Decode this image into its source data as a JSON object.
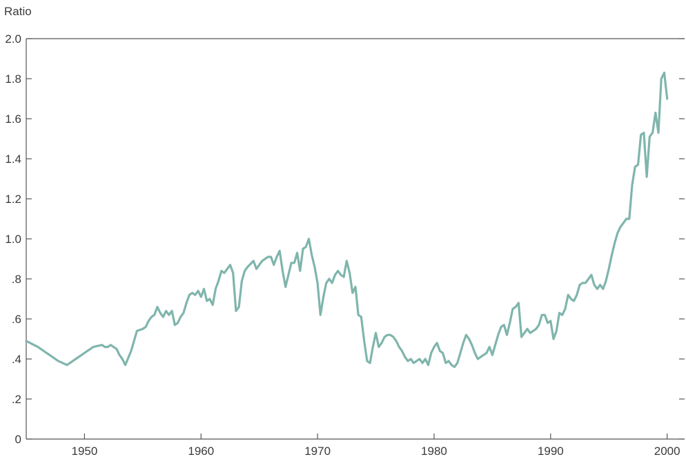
{
  "chart_data": {
    "type": "line",
    "title": "",
    "xlabel": "",
    "ylabel": "Ratio",
    "xlim": [
      1945,
      2001.5
    ],
    "ylim": [
      0,
      2.0
    ],
    "grid": false,
    "legend": "none",
    "x_ticks": [
      1950,
      1960,
      1970,
      1980,
      1990,
      2000
    ],
    "x_tick_labels": [
      "1950",
      "1960",
      "1970",
      "1980",
      "1990",
      "2000"
    ],
    "y_ticks": [
      0,
      0.2,
      0.4,
      0.6,
      0.8,
      1.0,
      1.2,
      1.4,
      1.6,
      1.8,
      2.0
    ],
    "y_tick_labels": [
      "0",
      ".2",
      ".4",
      ".6",
      ".8",
      "1.0",
      "1.2",
      "1.4",
      "1.6",
      "1.8",
      "2.0"
    ],
    "line_color": "#7fb5ac",
    "axis_color": "#555555",
    "series": [
      {
        "x": [
          1945.0,
          1946.0,
          1947.0,
          1947.75,
          1948.5,
          1949.25,
          1950.0,
          1950.75,
          1951.5,
          1951.75,
          1952.0,
          1952.25,
          1952.5,
          1952.75,
          1953.0,
          1953.25,
          1953.5,
          1954.0,
          1954.5,
          1955.0,
          1955.25,
          1955.5,
          1955.75,
          1956.0,
          1956.25,
          1956.5,
          1956.75,
          1957.0,
          1957.25,
          1957.5,
          1957.75,
          1958.0,
          1958.25,
          1958.5,
          1958.75,
          1959.0,
          1959.25,
          1959.5,
          1959.75,
          1960.0,
          1960.25,
          1960.5,
          1960.75,
          1961.0,
          1961.25,
          1961.5,
          1961.75,
          1962.0,
          1962.25,
          1962.5,
          1962.75,
          1963.0,
          1963.25,
          1963.5,
          1963.75,
          1964.0,
          1964.5,
          1964.75,
          1965.0,
          1965.25,
          1965.5,
          1965.75,
          1966.0,
          1966.25,
          1966.5,
          1966.75,
          1967.0,
          1967.25,
          1967.5,
          1967.75,
          1968.0,
          1968.25,
          1968.5,
          1968.75,
          1969.0,
          1969.25,
          1969.5,
          1969.75,
          1970.0,
          1970.25,
          1970.5,
          1970.75,
          1971.0,
          1971.25,
          1971.5,
          1971.75,
          1972.0,
          1972.25,
          1972.5,
          1972.75,
          1973.0,
          1973.25,
          1973.5,
          1973.75,
          1974.0,
          1974.25,
          1974.5,
          1974.75,
          1975.0,
          1975.25,
          1975.5,
          1975.75,
          1976.0,
          1976.25,
          1976.5,
          1976.75,
          1977.0,
          1977.25,
          1977.5,
          1977.75,
          1978.0,
          1978.25,
          1978.5,
          1978.75,
          1979.0,
          1979.25,
          1979.5,
          1979.75,
          1980.0,
          1980.25,
          1980.5,
          1980.75,
          1981.0,
          1981.25,
          1981.5,
          1981.75,
          1982.0,
          1982.25,
          1982.5,
          1982.75,
          1983.0,
          1983.25,
          1983.5,
          1983.75,
          1984.0,
          1984.25,
          1984.5,
          1984.75,
          1985.0,
          1985.25,
          1985.5,
          1985.75,
          1986.0,
          1986.25,
          1986.5,
          1986.75,
          1987.0,
          1987.25,
          1987.5,
          1987.75,
          1988.0,
          1988.25,
          1988.5,
          1988.75,
          1989.0,
          1989.25,
          1989.5,
          1989.75,
          1990.0,
          1990.25,
          1990.5,
          1990.75,
          1991.0,
          1991.25,
          1991.5,
          1991.75,
          1992.0,
          1992.25,
          1992.5,
          1992.75,
          1993.0,
          1993.25,
          1993.5,
          1993.75,
          1994.0,
          1994.25,
          1994.5,
          1994.75,
          1995.0,
          1995.25,
          1995.5,
          1995.75,
          1996.0,
          1996.25,
          1996.5,
          1996.75,
          1997.0,
          1997.25,
          1997.5,
          1997.75,
          1998.0,
          1998.25,
          1998.5,
          1998.75,
          1999.0,
          1999.25,
          1999.5,
          1999.75,
          2000.0
        ],
        "y": [
          0.49,
          0.46,
          0.42,
          0.39,
          0.37,
          0.4,
          0.43,
          0.46,
          0.47,
          0.46,
          0.46,
          0.47,
          0.46,
          0.45,
          0.42,
          0.4,
          0.37,
          0.44,
          0.54,
          0.55,
          0.56,
          0.59,
          0.61,
          0.62,
          0.66,
          0.63,
          0.61,
          0.64,
          0.62,
          0.64,
          0.57,
          0.58,
          0.61,
          0.63,
          0.68,
          0.72,
          0.73,
          0.72,
          0.74,
          0.71,
          0.75,
          0.69,
          0.7,
          0.67,
          0.75,
          0.79,
          0.84,
          0.83,
          0.85,
          0.87,
          0.83,
          0.64,
          0.66,
          0.79,
          0.84,
          0.86,
          0.89,
          0.85,
          0.87,
          0.89,
          0.9,
          0.91,
          0.91,
          0.87,
          0.91,
          0.94,
          0.84,
          0.76,
          0.82,
          0.88,
          0.88,
          0.93,
          0.84,
          0.95,
          0.96,
          1.0,
          0.92,
          0.86,
          0.78,
          0.62,
          0.71,
          0.78,
          0.8,
          0.78,
          0.82,
          0.84,
          0.82,
          0.81,
          0.89,
          0.83,
          0.73,
          0.76,
          0.62,
          0.61,
          0.49,
          0.39,
          0.38,
          0.46,
          0.53,
          0.46,
          0.48,
          0.51,
          0.52,
          0.52,
          0.51,
          0.49,
          0.46,
          0.44,
          0.41,
          0.39,
          0.4,
          0.38,
          0.39,
          0.4,
          0.38,
          0.4,
          0.37,
          0.43,
          0.46,
          0.48,
          0.44,
          0.43,
          0.38,
          0.39,
          0.37,
          0.36,
          0.38,
          0.43,
          0.48,
          0.52,
          0.5,
          0.47,
          0.43,
          0.4,
          0.41,
          0.42,
          0.43,
          0.46,
          0.42,
          0.47,
          0.52,
          0.56,
          0.57,
          0.52,
          0.58,
          0.65,
          0.66,
          0.68,
          0.51,
          0.53,
          0.55,
          0.53,
          0.54,
          0.55,
          0.57,
          0.62,
          0.62,
          0.58,
          0.59,
          0.5,
          0.54,
          0.63,
          0.62,
          0.65,
          0.72,
          0.7,
          0.69,
          0.72,
          0.77,
          0.78,
          0.78,
          0.8,
          0.82,
          0.77,
          0.75,
          0.77,
          0.75,
          0.79,
          0.85,
          0.92,
          0.98,
          1.03,
          1.06,
          1.08,
          1.1,
          1.1,
          1.27,
          1.36,
          1.37,
          1.52,
          1.53,
          1.31,
          1.51,
          1.53,
          1.63,
          1.53,
          1.8,
          1.83,
          1.7
        ]
      }
    ]
  }
}
